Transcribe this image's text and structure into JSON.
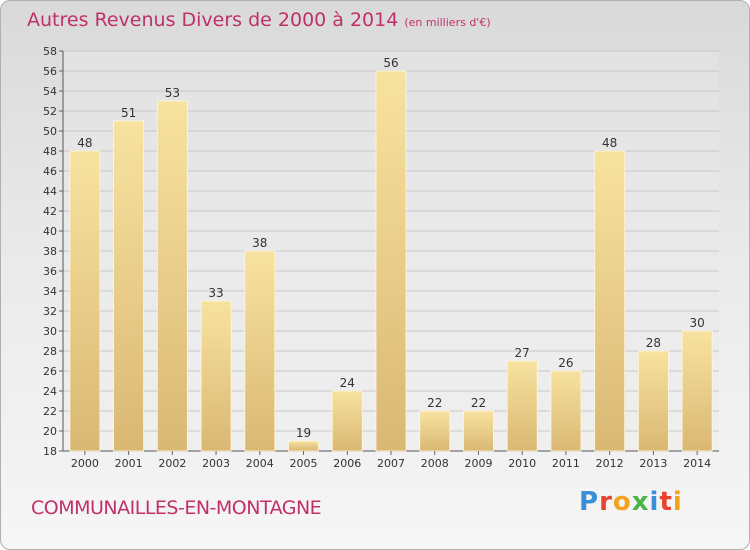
{
  "title": "Autres Revenus Divers de 2000 à 2014",
  "unit": "(en milliers d'€)",
  "commune": "COMMUNAILLES-EN-MONTAGNE",
  "logo": {
    "text": "Proxiti",
    "colors": [
      "#3a8fd8",
      "#e8432f",
      "#f2a31b",
      "#4ab54a",
      "#3a8fd8",
      "#e8432f",
      "#f2a31b"
    ]
  },
  "colors": {
    "title": "#c0306a",
    "bar_light": "#f8e2a0",
    "bar_dark": "#d9b873",
    "grid": "#c8c8c8"
  },
  "chart_data": {
    "type": "bar",
    "categories": [
      "2000",
      "2001",
      "2002",
      "2003",
      "2004",
      "2005",
      "2006",
      "2007",
      "2008",
      "2009",
      "2010",
      "2011",
      "2012",
      "2013",
      "2014"
    ],
    "values": [
      48,
      51,
      53,
      33,
      38,
      19,
      24,
      56,
      22,
      22,
      27,
      26,
      48,
      28,
      30
    ],
    "ylim": [
      18,
      58
    ],
    "yticks": [
      18,
      20,
      22,
      24,
      26,
      28,
      30,
      32,
      34,
      36,
      38,
      40,
      42,
      44,
      46,
      48,
      50,
      52,
      54,
      56,
      58
    ],
    "grid": true,
    "data_labels": true
  }
}
